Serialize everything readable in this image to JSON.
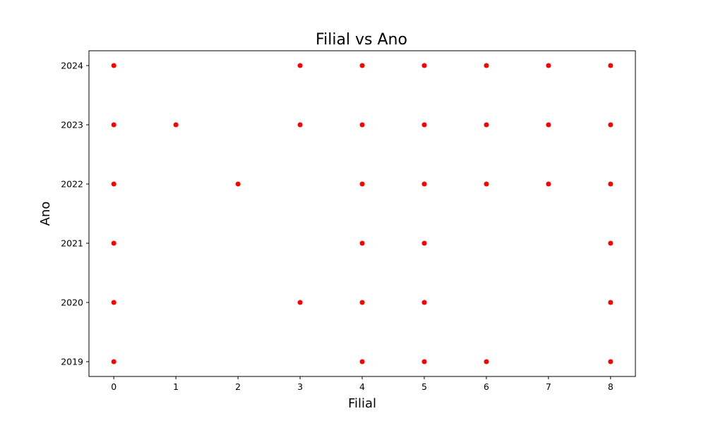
{
  "chart_data": {
    "type": "scatter",
    "title": "Filial vs Ano",
    "xlabel": "Filial",
    "ylabel": "Ano",
    "x_ticks": [
      0,
      1,
      2,
      3,
      4,
      5,
      6,
      7,
      8
    ],
    "y_ticks": [
      2019,
      2020,
      2021,
      2022,
      2023,
      2024
    ],
    "xlim": [
      -0.4,
      8.4
    ],
    "ylim": [
      2018.75,
      2024.25
    ],
    "grid": false,
    "point_color": "#ff0000",
    "points": [
      {
        "x": 0,
        "y": 2024
      },
      {
        "x": 0,
        "y": 2023
      },
      {
        "x": 0,
        "y": 2022
      },
      {
        "x": 0,
        "y": 2021
      },
      {
        "x": 0,
        "y": 2020
      },
      {
        "x": 0,
        "y": 2019
      },
      {
        "x": 1,
        "y": 2023
      },
      {
        "x": 2,
        "y": 2022
      },
      {
        "x": 3,
        "y": 2024
      },
      {
        "x": 3,
        "y": 2023
      },
      {
        "x": 3,
        "y": 2020
      },
      {
        "x": 4,
        "y": 2024
      },
      {
        "x": 4,
        "y": 2023
      },
      {
        "x": 4,
        "y": 2022
      },
      {
        "x": 4,
        "y": 2021
      },
      {
        "x": 4,
        "y": 2020
      },
      {
        "x": 4,
        "y": 2019
      },
      {
        "x": 5,
        "y": 2024
      },
      {
        "x": 5,
        "y": 2023
      },
      {
        "x": 5,
        "y": 2022
      },
      {
        "x": 5,
        "y": 2021
      },
      {
        "x": 5,
        "y": 2020
      },
      {
        "x": 5,
        "y": 2019
      },
      {
        "x": 6,
        "y": 2024
      },
      {
        "x": 6,
        "y": 2023
      },
      {
        "x": 6,
        "y": 2022
      },
      {
        "x": 6,
        "y": 2019
      },
      {
        "x": 7,
        "y": 2024
      },
      {
        "x": 7,
        "y": 2023
      },
      {
        "x": 7,
        "y": 2022
      },
      {
        "x": 8,
        "y": 2024
      },
      {
        "x": 8,
        "y": 2023
      },
      {
        "x": 8,
        "y": 2022
      },
      {
        "x": 8,
        "y": 2021
      },
      {
        "x": 8,
        "y": 2020
      },
      {
        "x": 8,
        "y": 2019
      }
    ]
  }
}
